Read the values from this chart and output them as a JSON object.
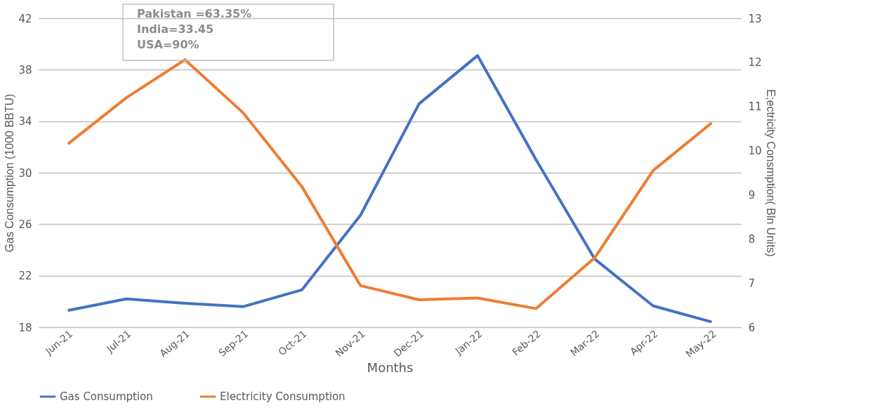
{
  "chart_data": {
    "type": "line",
    "xlabel": "Months",
    "ylabel": "Gas Consumption (1000  BBTU)",
    "y2label": "E;ectricity Consmption( Bln Units)",
    "categories": [
      "Jun-21",
      "Jul-21",
      "Aug-21",
      "Sep-21",
      "Oct-21",
      "Nov-21",
      "Dec-21",
      "Jan-22",
      "Feb-22",
      "Mar-22",
      "Apr-22",
      "May-22"
    ],
    "series": [
      {
        "name": "Gas Consumption",
        "color": "#4472c4",
        "values": [
          19.3,
          20.2,
          19.85,
          19.6,
          20.9,
          26.7,
          35.35,
          39.1,
          31.0,
          23.3,
          19.65,
          18.4
        ]
      },
      {
        "name": "Electricity Consumption",
        "color": "#ed7d31",
        "axis": "y2",
        "values": [
          10.15,
          11.2,
          12.06,
          10.85,
          9.18,
          6.94,
          6.62,
          6.66,
          6.42,
          7.57,
          9.55,
          10.63
        ]
      }
    ],
    "ylim": [
      18,
      42
    ],
    "yticks": [
      18,
      22,
      26,
      30,
      34,
      38,
      42
    ],
    "y2lim": [
      6,
      13
    ],
    "y2ticks": [
      6,
      7,
      8,
      9,
      10,
      11,
      12,
      13
    ],
    "grid": "y",
    "legend": "bottom",
    "marker": "none",
    "line_style": "solid",
    "annotations": [
      "Pakistan =63.35%",
      "India=33.45",
      "USA=90%"
    ]
  }
}
